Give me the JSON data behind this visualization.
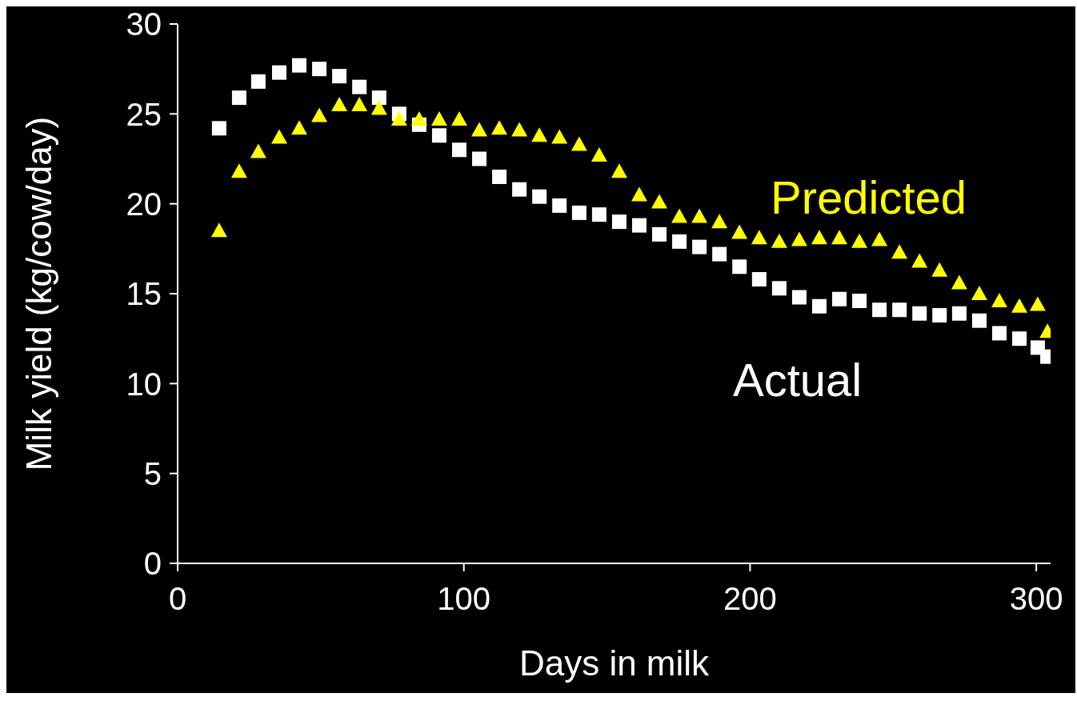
{
  "chart_data": {
    "type": "scatter",
    "xlabel": "Days in milk",
    "ylabel": "Milk yield (kg/cow/day)",
    "xlim": [
      0,
      305
    ],
    "xticks": [
      0,
      100,
      200,
      300
    ],
    "ylim": [
      0,
      30
    ],
    "yticks": [
      0,
      5,
      10,
      15,
      20,
      25,
      30
    ],
    "grid": false,
    "legend": false,
    "x": [
      14.5,
      21.5,
      28.2,
      35.5,
      42.5,
      49.5,
      56.5,
      63.5,
      70.4,
      77.4,
      84.4,
      91.4,
      98.4,
      105.4,
      112.4,
      119.4,
      126.4,
      133.4,
      140.3,
      147.3,
      154.3,
      161.3,
      168.3,
      175.3,
      182.3,
      189.3,
      196.3,
      203.2,
      210.2,
      217.2,
      224.2,
      231.2,
      238.2,
      245.2,
      252.2,
      259.2,
      266.2,
      273.1,
      280.1,
      287.1,
      294.1,
      300.5,
      303.9
    ],
    "series": [
      {
        "name": "Actual",
        "color": "#ffffff",
        "marker": "square",
        "values": [
          24.2,
          25.9,
          26.8,
          27.3,
          27.7,
          27.5,
          27.1,
          26.5,
          25.9,
          25.0,
          24.4,
          23.8,
          23.0,
          22.5,
          21.5,
          20.8,
          20.4,
          19.9,
          19.5,
          19.4,
          19.0,
          18.8,
          18.3,
          17.9,
          17.6,
          17.2,
          16.5,
          15.8,
          15.3,
          14.8,
          14.3,
          14.7,
          14.6,
          14.1,
          14.1,
          13.9,
          13.8,
          13.9,
          13.5,
          12.8,
          12.5,
          12.0,
          11.5
        ]
      },
      {
        "name": "Predicted",
        "color": "#ffff00",
        "marker": "triangle",
        "values": [
          18.5,
          21.8,
          22.9,
          23.7,
          24.2,
          24.9,
          25.5,
          25.5,
          25.3,
          24.7,
          24.7,
          24.7,
          24.7,
          24.1,
          24.2,
          24.1,
          23.8,
          23.7,
          23.3,
          22.7,
          21.8,
          20.5,
          20.1,
          19.3,
          19.3,
          19.0,
          18.4,
          18.1,
          17.9,
          18.0,
          18.1,
          18.1,
          17.9,
          18.0,
          17.3,
          16.8,
          16.3,
          15.6,
          15.0,
          14.6,
          14.3,
          14.4,
          12.9
        ]
      }
    ]
  }
}
